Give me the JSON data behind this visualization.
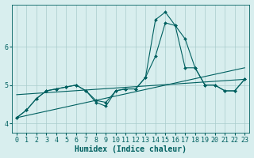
{
  "bg_color": "#d8eeee",
  "grid_color": "#aacccc",
  "line_color": "#006060",
  "xlabel": "Humidex (Indice chaleur)",
  "xlabel_fontsize": 7,
  "tick_fontsize": 6,
  "xlim": [
    -0.5,
    23.5
  ],
  "ylim": [
    3.75,
    7.1
  ],
  "yticks": [
    4,
    5,
    6
  ],
  "xticks": [
    0,
    1,
    2,
    3,
    4,
    5,
    6,
    7,
    8,
    9,
    10,
    11,
    12,
    13,
    14,
    15,
    16,
    17,
    18,
    19,
    20,
    21,
    22,
    23
  ],
  "series": [
    {
      "x": [
        0,
        1,
        2,
        3,
        4,
        5,
        6,
        7,
        8,
        9,
        10,
        11,
        12,
        13,
        14,
        15,
        16,
        17,
        18,
        19,
        20,
        21,
        22,
        23
      ],
      "y": [
        4.15,
        4.35,
        4.65,
        4.85,
        4.9,
        4.95,
        5.0,
        4.85,
        4.55,
        4.45,
        4.85,
        4.9,
        4.9,
        5.2,
        6.7,
        6.9,
        6.55,
        5.45,
        5.45,
        5.0,
        5.0,
        4.85,
        4.85,
        5.15
      ]
    },
    {
      "x": [
        0,
        1,
        2,
        3,
        4,
        5,
        6,
        7,
        8,
        9,
        10,
        11,
        12,
        13,
        14,
        15,
        16,
        17,
        18,
        19,
        20,
        21,
        22,
        23
      ],
      "y": [
        4.15,
        4.35,
        4.65,
        4.85,
        4.9,
        4.95,
        5.0,
        4.85,
        4.6,
        4.55,
        4.85,
        4.9,
        4.9,
        5.2,
        5.75,
        6.62,
        6.55,
        6.2,
        5.45,
        5.0,
        5.0,
        4.85,
        4.85,
        5.15
      ]
    },
    {
      "x": [
        0,
        23
      ],
      "y": [
        4.15,
        5.45
      ]
    },
    {
      "x": [
        0,
        23
      ],
      "y": [
        4.75,
        5.15
      ]
    }
  ]
}
